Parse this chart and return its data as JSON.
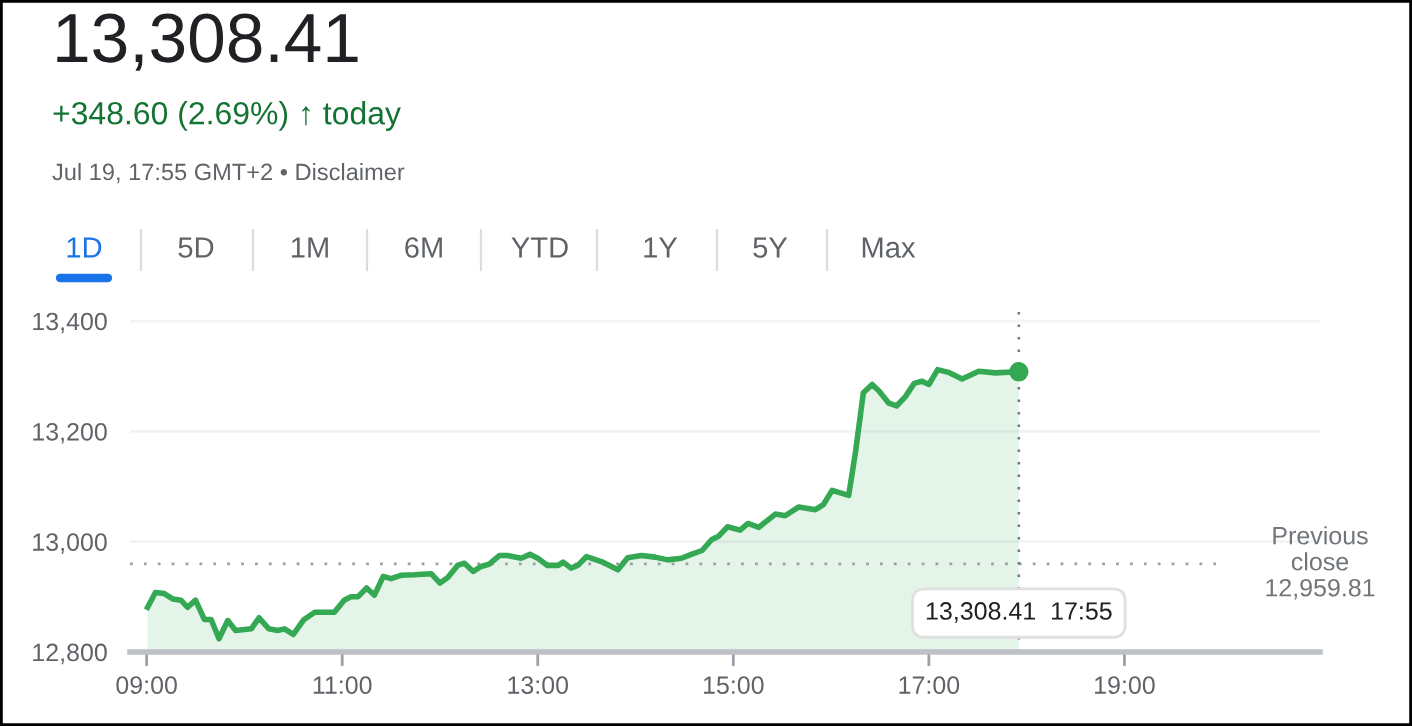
{
  "chart_data": {
    "type": "area",
    "title": "13,308.41",
    "subtitle": "+348.60 (2.69%) ↑ today",
    "annotations": [
      "Jul 19, 17:55 GMT+2 • Disclaimer",
      "1D",
      "5D",
      "1M",
      "6M",
      "YTD",
      "1Y",
      "5Y",
      "Max",
      "13,308.41  17:55"
    ],
    "x": [
      9.01,
      9.09,
      9.18,
      9.27,
      9.35,
      9.42,
      9.5,
      9.59,
      9.66,
      9.74,
      9.83,
      9.91,
      10.07,
      10.15,
      10.25,
      10.34,
      10.41,
      10.5,
      10.61,
      10.72,
      10.82,
      10.92,
      11.02,
      11.09,
      11.16,
      11.25,
      11.33,
      11.42,
      11.5,
      11.6,
      11.74,
      11.91,
      12.0,
      12.08,
      12.18,
      12.25,
      12.34,
      12.42,
      12.5,
      12.61,
      12.69,
      12.83,
      12.92,
      13.0,
      13.1,
      13.21,
      13.26,
      13.34,
      13.41,
      13.5,
      13.65,
      13.82,
      13.92,
      14.06,
      14.2,
      14.33,
      14.47,
      14.57,
      14.68,
      14.78,
      14.85,
      14.94,
      15.07,
      15.15,
      15.26,
      15.43,
      15.53,
      15.67,
      15.84,
      15.92,
      16.01,
      16.18,
      16.25,
      16.33,
      16.42,
      16.49,
      16.59,
      16.67,
      16.76,
      16.85,
      16.93,
      17.0,
      17.09,
      17.2,
      17.34,
      17.51,
      17.68,
      17.92
    ],
    "series": [
      {
        "color": "#34a853",
        "values": [
          12881,
          12908,
          12906,
          12896,
          12894,
          12881,
          12894,
          12859,
          12859,
          12824,
          12857,
          12839,
          12842,
          12862,
          12842,
          12839,
          12842,
          12832,
          12859,
          12872,
          12872,
          12872,
          12894,
          12900,
          12900,
          12916,
          12903,
          12937,
          12933,
          12939,
          12940,
          12942,
          12925,
          12935,
          12957,
          12961,
          12946,
          12955,
          12959,
          12975,
          12975,
          12970,
          12977,
          12970,
          12957,
          12957,
          12963,
          12952,
          12957,
          12973,
          12964,
          12949,
          12971,
          12975,
          12972,
          12967,
          12970,
          12977,
          12984,
          13004,
          13010,
          13027,
          13021,
          13033,
          13026,
          13050,
          13047,
          13063,
          13058,
          13067,
          13093,
          13084,
          13163,
          13270,
          13285,
          13273,
          13251,
          13246,
          13263,
          13287,
          13291,
          13285,
          13312,
          13307,
          13295,
          13309,
          13306,
          13308
        ]
      }
    ],
    "xlim": [
      8.83,
      21.0
    ],
    "ylim": [
      12800,
      13420
    ],
    "xticks": [
      {
        "value": 9,
        "label": "09:00"
      },
      {
        "value": 11,
        "label": "11:00"
      },
      {
        "value": 13,
        "label": "13:00"
      },
      {
        "value": 15,
        "label": "15:00"
      },
      {
        "value": 17,
        "label": "17:00"
      },
      {
        "value": 19,
        "label": "19:00"
      }
    ],
    "yticks": [
      {
        "value": 12800,
        "label": "12,800"
      },
      {
        "value": 13000,
        "label": "13,000"
      },
      {
        "value": 13200,
        "label": "13,200"
      },
      {
        "value": 13400,
        "label": "13,400"
      }
    ],
    "ref_lines": [
      {
        "axis": "y",
        "value": 12959.81,
        "label": "Previous\nclose\n12,959.81",
        "color": "#9aa0a6",
        "line_style": "dotted"
      },
      {
        "axis": "x",
        "value": 17.92,
        "color": "#757575",
        "line_style": "dotted"
      }
    ],
    "grid": "y"
  }
}
